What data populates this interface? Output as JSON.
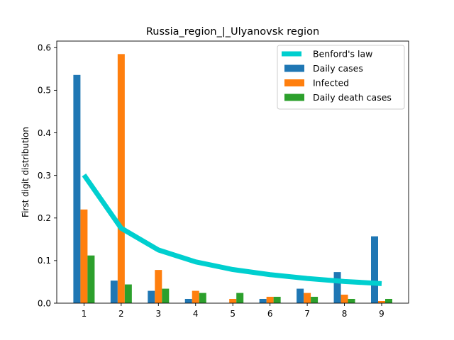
{
  "chart_data": {
    "type": "bar",
    "title": "Russia_region_|_Ulyanovsk region",
    "xlabel": "",
    "ylabel": "First digit distribution",
    "categories": [
      "1",
      "2",
      "3",
      "4",
      "5",
      "6",
      "7",
      "8",
      "9"
    ],
    "yticks": [
      "0.0",
      "0.1",
      "0.2",
      "0.3",
      "0.4",
      "0.5",
      "0.6"
    ],
    "ylim": [
      0,
      0.6
    ],
    "legend_position": "top-right",
    "series": [
      {
        "name": "Daily cases",
        "kind": "bar",
        "color": "#1f77b4",
        "values": [
          0.536,
          0.053,
          0.029,
          0.01,
          0.0,
          0.01,
          0.034,
          0.073,
          0.157
        ]
      },
      {
        "name": "Infected",
        "kind": "bar",
        "color": "#ff7f0e",
        "values": [
          0.22,
          0.585,
          0.078,
          0.029,
          0.01,
          0.015,
          0.024,
          0.02,
          0.005
        ]
      },
      {
        "name": "Daily death cases",
        "kind": "bar",
        "color": "#2ca02c",
        "values": [
          0.112,
          0.044,
          0.034,
          0.024,
          0.024,
          0.015,
          0.015,
          0.01,
          0.01
        ]
      }
    ],
    "reference_line": {
      "name": "Benford's law",
      "kind": "line",
      "color": "#00cfcf",
      "values": [
        0.301,
        0.176,
        0.125,
        0.097,
        0.079,
        0.067,
        0.058,
        0.051,
        0.046
      ]
    }
  }
}
